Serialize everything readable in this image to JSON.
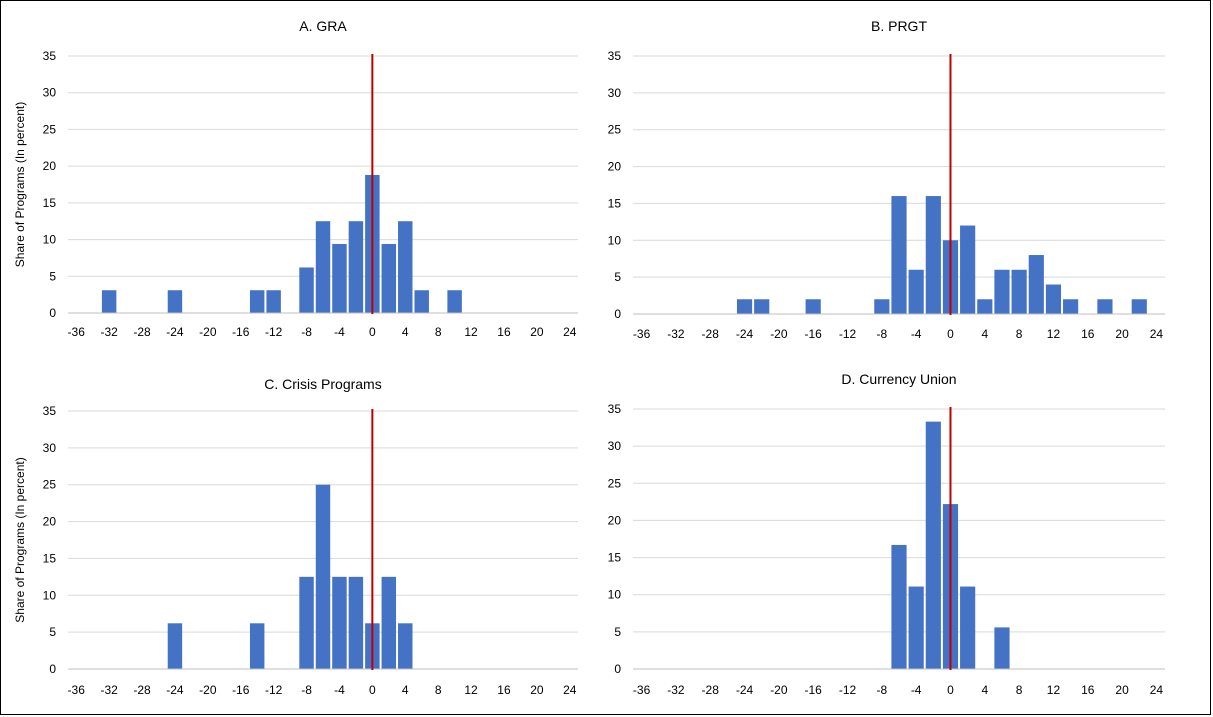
{
  "chart_data": [
    {
      "type": "bar",
      "title": "A. GRA",
      "ylabel": "Share of Programs (In percent)",
      "ylim": [
        0,
        35
      ],
      "yticks": [
        0,
        5,
        10,
        15,
        20,
        25,
        30,
        35
      ],
      "xlim": [
        -37,
        25
      ],
      "xticks": [
        -36,
        -32,
        -28,
        -24,
        -20,
        -16,
        -12,
        -8,
        -4,
        0,
        4,
        8,
        12,
        16,
        20,
        24
      ],
      "bin_width": 2,
      "reference_line_x": 0,
      "grid": true,
      "bars": [
        {
          "x": -32,
          "y": 3.1
        },
        {
          "x": -24,
          "y": 3.1
        },
        {
          "x": -14,
          "y": 3.1
        },
        {
          "x": -12,
          "y": 3.1
        },
        {
          "x": -8,
          "y": 6.2
        },
        {
          "x": -6,
          "y": 12.5
        },
        {
          "x": -4,
          "y": 9.4
        },
        {
          "x": -2,
          "y": 12.5
        },
        {
          "x": 0,
          "y": 18.8
        },
        {
          "x": 2,
          "y": 9.4
        },
        {
          "x": 4,
          "y": 12.5
        },
        {
          "x": 6,
          "y": 3.1
        },
        {
          "x": 10,
          "y": 3.1
        }
      ]
    },
    {
      "type": "bar",
      "title": "B. PRGT",
      "ylabel": "",
      "ylim": [
        0,
        35
      ],
      "yticks": [
        0,
        5,
        10,
        15,
        20,
        25,
        30,
        35
      ],
      "xlim": [
        -37,
        25
      ],
      "xticks": [
        -36,
        -32,
        -28,
        -24,
        -20,
        -16,
        -12,
        -8,
        -4,
        0,
        4,
        8,
        12,
        16,
        20,
        24
      ],
      "bin_width": 2,
      "reference_line_x": 0,
      "grid": true,
      "bars": [
        {
          "x": -24,
          "y": 2
        },
        {
          "x": -22,
          "y": 2
        },
        {
          "x": -16,
          "y": 2
        },
        {
          "x": -8,
          "y": 2
        },
        {
          "x": -6,
          "y": 16
        },
        {
          "x": -4,
          "y": 6
        },
        {
          "x": -2,
          "y": 16
        },
        {
          "x": 0,
          "y": 10
        },
        {
          "x": 2,
          "y": 12
        },
        {
          "x": 4,
          "y": 2
        },
        {
          "x": 6,
          "y": 6
        },
        {
          "x": 8,
          "y": 6
        },
        {
          "x": 10,
          "y": 8
        },
        {
          "x": 12,
          "y": 4
        },
        {
          "x": 14,
          "y": 2
        },
        {
          "x": 18,
          "y": 2
        },
        {
          "x": 22,
          "y": 2
        }
      ]
    },
    {
      "type": "bar",
      "title": "C. Crisis Programs",
      "ylabel": "Share of Programs (In percent)",
      "ylim": [
        0,
        35
      ],
      "yticks": [
        0,
        5,
        10,
        15,
        20,
        25,
        30,
        35
      ],
      "xlim": [
        -37,
        25
      ],
      "xticks": [
        -36,
        -32,
        -28,
        -24,
        -20,
        -16,
        -12,
        -8,
        -4,
        0,
        4,
        8,
        12,
        16,
        20,
        24
      ],
      "bin_width": 2,
      "reference_line_x": 0,
      "grid": true,
      "bars": [
        {
          "x": -24,
          "y": 6.2
        },
        {
          "x": -14,
          "y": 6.2
        },
        {
          "x": -8,
          "y": 12.5
        },
        {
          "x": -6,
          "y": 25
        },
        {
          "x": -4,
          "y": 12.5
        },
        {
          "x": -2,
          "y": 12.5
        },
        {
          "x": 0,
          "y": 6.2
        },
        {
          "x": 2,
          "y": 12.5
        },
        {
          "x": 4,
          "y": 6.2
        }
      ]
    },
    {
      "type": "bar",
      "title": "D. Currency Union",
      "ylabel": "",
      "ylim": [
        0,
        35
      ],
      "yticks": [
        0,
        5,
        10,
        15,
        20,
        25,
        30,
        35
      ],
      "xlim": [
        -37,
        25
      ],
      "xticks": [
        -36,
        -32,
        -28,
        -24,
        -20,
        -16,
        -12,
        -8,
        -4,
        0,
        4,
        8,
        12,
        16,
        20,
        24
      ],
      "bin_width": 2,
      "reference_line_x": 0,
      "grid": true,
      "bars": [
        {
          "x": -6,
          "y": 16.7
        },
        {
          "x": -4,
          "y": 11.1
        },
        {
          "x": -2,
          "y": 33.3
        },
        {
          "x": 0,
          "y": 22.2
        },
        {
          "x": 2,
          "y": 11.1
        },
        {
          "x": 6,
          "y": 5.6
        }
      ]
    }
  ]
}
